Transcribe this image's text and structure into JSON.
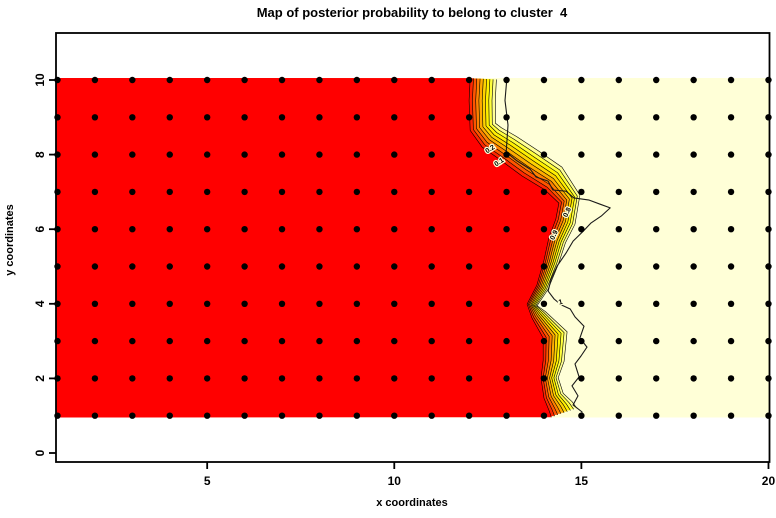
{
  "title": "Map of posterior probability to belong to cluster  4",
  "axes": {
    "xlabel": "x coordinates",
    "ylabel": "y coordinates",
    "x_ticks": [
      5,
      10,
      15,
      20
    ],
    "y_ticks": [
      0,
      2,
      4,
      6,
      8,
      10
    ]
  },
  "colors": {
    "high_region": "#ff0000",
    "low_region": "#ffffd7",
    "band": [
      "#ff2600",
      "#ff5400",
      "#ff8000",
      "#ffab00",
      "#ffd300",
      "#fff000",
      "#ffff3c",
      "#ffff96"
    ],
    "dots": "#000000",
    "contour_line": "#000000",
    "raw_contour_line": "#1a1a1a"
  },
  "chart_data": {
    "type": "heatmap",
    "title": "Map of posterior probability to belong to cluster  4",
    "xlabel": "x coordinates",
    "ylabel": "y coordinates",
    "x_axis_range": [
      1,
      20
    ],
    "y_axis_range": [
      0,
      10
    ],
    "image_extent": {
      "x": [
        0.96,
        20.05
      ],
      "y": [
        0.97,
        10.05
      ]
    },
    "grid_points": {
      "x_values": [
        1,
        2,
        3,
        4,
        5,
        6,
        7,
        8,
        9,
        10,
        11,
        12,
        13,
        14,
        15,
        16,
        17,
        18,
        19,
        20
      ],
      "y_values": [
        1,
        2,
        3,
        4,
        5,
        6,
        7,
        8,
        9,
        10
      ]
    },
    "legend_position": "none",
    "grid": "off",
    "description": "Red region = posterior probability ~1 for cluster 4; pale yellow region = ~0; smooth contour band levels 0.1-0.9 between them; jagged line = raw probability contour.",
    "boundary_high_edge": [
      [
        12.03,
        10.05,
        0.7
      ],
      [
        12.0,
        9.45,
        0.7
      ],
      [
        12.03,
        8.65,
        0.7
      ],
      [
        12.35,
        8.2,
        0.73
      ],
      [
        12.83,
        7.86,
        0.76
      ],
      [
        13.41,
        7.43,
        0.8
      ],
      [
        14.03,
        7.05,
        0.76
      ],
      [
        14.4,
        6.7,
        0.6
      ],
      [
        14.32,
        6.28,
        0.53
      ],
      [
        14.13,
        5.76,
        0.46
      ],
      [
        14.0,
        5.17,
        0.4
      ],
      [
        13.81,
        4.5,
        0.32
      ],
      [
        13.55,
        3.99,
        0.27
      ],
      [
        13.68,
        3.62,
        0.4
      ],
      [
        13.98,
        3.08,
        0.66
      ],
      [
        13.98,
        2.49,
        0.56
      ],
      [
        13.92,
        2.01,
        0.46
      ],
      [
        14.0,
        1.47,
        0.53
      ],
      [
        14.14,
        1.13,
        0.66
      ],
      [
        14.2,
        0.96,
        0.72
      ]
    ],
    "contour_levels_in_band": 9,
    "raw_contour": [
      [
        13.01,
        10.05
      ],
      [
        12.96,
        9.45
      ],
      [
        13.04,
        8.79
      ],
      [
        12.99,
        8.07
      ],
      [
        13.28,
        7.83
      ],
      [
        13.63,
        7.61
      ],
      [
        13.79,
        7.4
      ],
      [
        14.11,
        7.29
      ],
      [
        14.24,
        7.05
      ],
      [
        14.59,
        7.02
      ],
      [
        14.8,
        6.84
      ],
      [
        15.21,
        6.78
      ],
      [
        15.5,
        6.67
      ],
      [
        15.77,
        6.57
      ],
      [
        15.53,
        6.35
      ],
      [
        15.26,
        6.17
      ],
      [
        15.05,
        5.95
      ],
      [
        14.78,
        5.68
      ],
      [
        14.59,
        5.36
      ],
      [
        14.35,
        5.01
      ],
      [
        14.19,
        4.66
      ],
      [
        14.11,
        4.34
      ],
      [
        14.27,
        4.13
      ],
      [
        14.46,
        3.97
      ],
      [
        14.7,
        3.86
      ],
      [
        14.83,
        3.65
      ],
      [
        15.07,
        3.4
      ],
      [
        14.96,
        3.08
      ],
      [
        15.15,
        2.84
      ],
      [
        14.99,
        2.6
      ],
      [
        14.83,
        2.39
      ],
      [
        14.94,
        2.04
      ],
      [
        14.75,
        1.8
      ],
      [
        14.91,
        1.53
      ],
      [
        14.78,
        1.29
      ],
      [
        15.02,
        1.1
      ],
      [
        14.97,
        0.96
      ]
    ],
    "contour_labels": [
      {
        "text": "0.2",
        "x": 12.59,
        "y": 8.1,
        "rot": -33
      },
      {
        "text": "0.1",
        "x": 12.83,
        "y": 7.75,
        "rot": -33
      },
      {
        "text": "0.8",
        "x": 14.67,
        "y": 6.43,
        "rot": -65
      },
      {
        "text": "0.9",
        "x": 14.32,
        "y": 5.82,
        "rot": -65
      },
      {
        "text": "1",
        "x": 14.46,
        "y": 3.99,
        "rot": -15
      }
    ]
  }
}
